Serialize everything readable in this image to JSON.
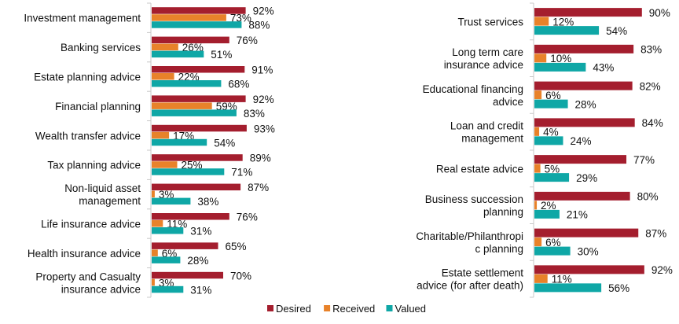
{
  "chart_data": [
    {
      "type": "bar",
      "orientation": "horizontal",
      "categories": [
        [
          "Investment management"
        ],
        [
          "Banking services"
        ],
        [
          "Estate planning advice"
        ],
        [
          "Financial planning"
        ],
        [
          "Wealth transfer advice"
        ],
        [
          "Tax planning advice"
        ],
        [
          "Non-liquid asset",
          "management"
        ],
        [
          "Life insurance advice"
        ],
        [
          "Health insurance advice"
        ],
        [
          "Property and Casualty",
          "insurance advice"
        ]
      ],
      "series": [
        {
          "name": "Desired",
          "values": [
            92,
            76,
            91,
            92,
            93,
            89,
            87,
            76,
            65,
            70
          ]
        },
        {
          "name": "Received",
          "values": [
            73,
            26,
            22,
            59,
            17,
            25,
            3,
            11,
            6,
            3
          ]
        },
        {
          "name": "Valued",
          "values": [
            88,
            51,
            68,
            83,
            54,
            71,
            38,
            31,
            28,
            31
          ]
        }
      ],
      "value_format": "%",
      "xlim": [
        0,
        100
      ],
      "grid": false
    },
    {
      "type": "bar",
      "orientation": "horizontal",
      "categories": [
        [
          "Trust services"
        ],
        [
          "Long term care",
          "insurance advice"
        ],
        [
          "Educational financing",
          "advice"
        ],
        [
          "Loan and credit",
          "management"
        ],
        [
          "Real estate advice"
        ],
        [
          "Business succession",
          "planning"
        ],
        [
          "Charitable/Philanthropi",
          "c planning"
        ],
        [
          "Estate settlement",
          "advice (for after death)"
        ]
      ],
      "series": [
        {
          "name": "Desired",
          "values": [
            90,
            83,
            82,
            84,
            77,
            80,
            87,
            92
          ]
        },
        {
          "name": "Received",
          "values": [
            12,
            10,
            6,
            4,
            5,
            2,
            6,
            11
          ]
        },
        {
          "name": "Valued",
          "values": [
            54,
            43,
            28,
            24,
            29,
            21,
            30,
            56
          ]
        }
      ],
      "value_format": "%",
      "xlim": [
        0,
        100
      ],
      "grid": false
    }
  ],
  "legend": {
    "placement": "bottom",
    "items": [
      "Desired",
      "Received",
      "Valued"
    ]
  },
  "colors": {
    "Desired": "#A41E2E",
    "Received": "#E8822A",
    "Valued": "#0FA7A6"
  }
}
